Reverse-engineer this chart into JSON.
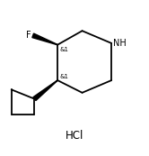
{
  "background_color": "#ffffff",
  "line_color": "#000000",
  "line_width": 1.3,
  "font_size_label": 7.0,
  "font_size_stereo": 5.0,
  "font_size_hcl": 8.5,
  "hcl_text": "HCl",
  "label_F": "F",
  "label_NH": "NH",
  "label_amp1": "&1",
  "label_amp2": "&1",
  "figsize": [
    1.66,
    1.73
  ],
  "dpi": 100
}
